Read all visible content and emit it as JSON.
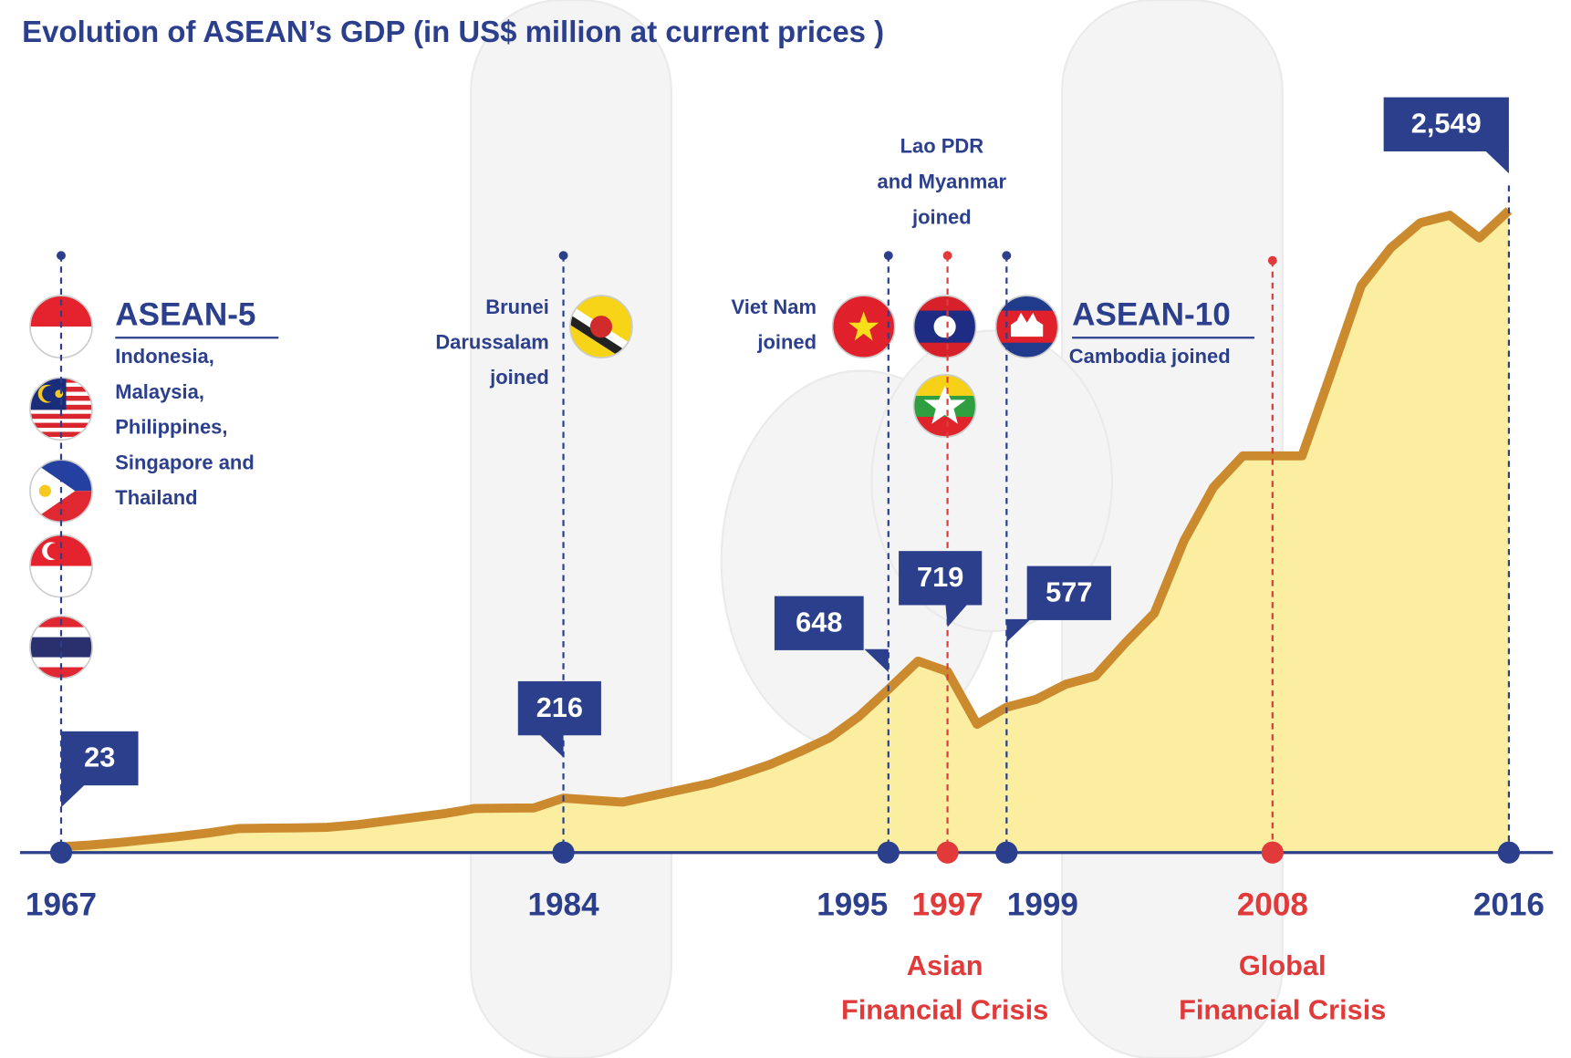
{
  "chart_data": {
    "type": "area",
    "title": "Evolution of ASEAN’s GDP (in US$ million at current prices )",
    "x": [
      1967,
      1968,
      1969,
      1970,
      1971,
      1972,
      1973,
      1974,
      1975,
      1976,
      1977,
      1978,
      1979,
      1980,
      1981,
      1982,
      1983,
      1984,
      1985,
      1986,
      1987,
      1988,
      1989,
      1990,
      1991,
      1992,
      1993,
      1994,
      1995,
      1996,
      1997,
      1998,
      1999,
      2000,
      2001,
      2002,
      2003,
      2004,
      2005,
      2006,
      2007,
      2008,
      2009,
      2010,
      2011,
      2012,
      2013,
      2014,
      2015,
      2016
    ],
    "values": [
      23,
      30,
      40,
      52,
      64,
      78,
      95,
      97,
      98,
      100,
      110,
      125,
      140,
      155,
      175,
      176,
      177,
      216,
      208,
      200,
      225,
      250,
      275,
      310,
      350,
      400,
      455,
      540,
      648,
      760,
      719,
      509,
      577,
      608,
      668,
      700,
      830,
      950,
      1237,
      1450,
      1575,
      1575,
      1575,
      1910,
      2250,
      2400,
      2500,
      2530,
      2440,
      2549
    ],
    "value_labels": [
      "23",
      null,
      null,
      null,
      null,
      null,
      null,
      null,
      null,
      null,
      null,
      null,
      null,
      null,
      null,
      null,
      null,
      "216",
      null,
      null,
      null,
      null,
      null,
      null,
      null,
      null,
      null,
      null,
      "648",
      null,
      "719",
      null,
      "577",
      null,
      null,
      null,
      null,
      null,
      null,
      null,
      null,
      null,
      null,
      null,
      null,
      null,
      null,
      null,
      null,
      "2,549"
    ],
    "xlim": [
      1967,
      2016
    ],
    "ylim": [
      0,
      2549
    ],
    "xticks": [
      1967,
      1984,
      1995,
      1997,
      1999,
      2008,
      2016
    ],
    "xtick_colors": [
      "#2b3f8c",
      "#2b3f8c",
      "#2b3f8c",
      "#e03a3a",
      "#2b3f8c",
      "#e03a3a",
      "#2b3f8c"
    ],
    "line_color": "#cc8a2e",
    "fill_color": "#fbeea0",
    "annotations": [
      {
        "title": "ASEAN-5",
        "lines": [
          "Indonesia,",
          "Malaysia,",
          "Philippines,",
          "Singapore and",
          "Thailand"
        ]
      },
      {
        "lines": [
          "Brunei",
          "Darussalam",
          "joined"
        ]
      },
      {
        "lines": [
          "Viet Nam",
          "joined"
        ]
      },
      {
        "lines": [
          "Lao PDR",
          "and Myanmar",
          "joined"
        ]
      },
      {
        "title": "ASEAN-10",
        "lines": [
          "Cambodia joined"
        ]
      },
      {
        "lines": [
          "Asian",
          "Financial Crisis"
        ],
        "color": "#e03a3a"
      },
      {
        "lines": [
          "Global",
          "Financial Crisis"
        ],
        "color": "#e03a3a"
      }
    ]
  }
}
